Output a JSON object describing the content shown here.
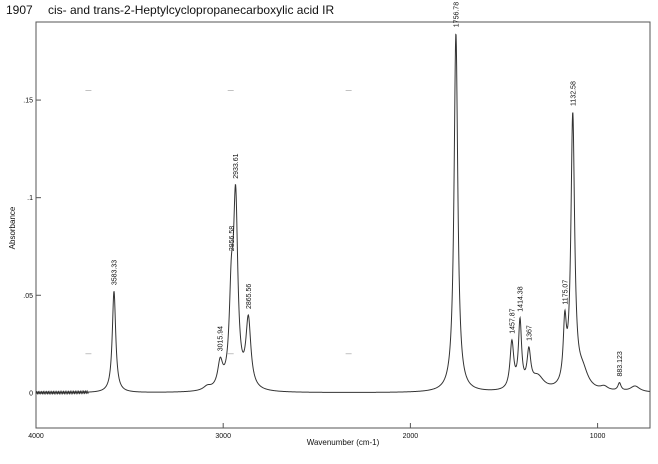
{
  "header": {
    "code": "1907",
    "title": "cis- and trans-2-Heptylcyclopropanecarboxylic acid IR"
  },
  "chart_data": {
    "type": "line",
    "xlabel": "Wavenumber (cm-1)",
    "ylabel": "Absorbance",
    "xlim": [
      4000,
      720
    ],
    "ylim": [
      -0.018,
      0.19
    ],
    "x_reversed": true,
    "grid": false,
    "x_ticks": [
      {
        "value": 4000,
        "label": "4000"
      },
      {
        "value": 3000,
        "label": "3000"
      },
      {
        "value": 2000,
        "label": "2000"
      },
      {
        "value": 1000,
        "label": "1000"
      }
    ],
    "y_ticks": [
      {
        "value": 0,
        "label": "0"
      },
      {
        "value": 0.05,
        "label": ".05"
      },
      {
        "value": 0.1,
        "label": ".1"
      },
      {
        "value": 0.15,
        "label": ".15"
      }
    ],
    "baseline_noise_x": [
      4000,
      3720
    ],
    "peaks": [
      {
        "label": "3583.33",
        "x": 3583.33,
        "y": 0.052,
        "width": 11
      },
      {
        "label": "3015.94",
        "x": 3015.94,
        "y": 0.013,
        "width": 16
      },
      {
        "label": "2956.58",
        "x": 2956.58,
        "y": 0.042,
        "width": 13
      },
      {
        "label": "2933.61",
        "x": 2933.61,
        "y": 0.094,
        "width": 14
      },
      {
        "label": "2865.56",
        "x": 2865.56,
        "y": 0.035,
        "width": 16
      },
      {
        "label": "1756.78",
        "x": 1756.78,
        "y": 0.184,
        "width": 12
      },
      {
        "label": "1457.87",
        "x": 1457.87,
        "y": 0.024,
        "width": 12
      },
      {
        "label": "1414.38",
        "x": 1414.38,
        "y": 0.034,
        "width": 10
      },
      {
        "label": "1367",
        "x": 1367,
        "y": 0.018,
        "width": 12
      },
      {
        "label": "1175.07",
        "x": 1175.07,
        "y": 0.03,
        "width": 10
      },
      {
        "label": "1132.58",
        "x": 1132.58,
        "y": 0.139,
        "width": 12
      },
      {
        "label": "883.123",
        "x": 883.123,
        "y": 0.004,
        "width": 10
      }
    ],
    "shoulders": [
      {
        "x": 3085,
        "y": 0.002,
        "width": 25
      },
      {
        "x": 1320,
        "y": 0.007,
        "width": 40
      },
      {
        "x": 1080,
        "y": 0.009,
        "width": 35
      },
      {
        "x": 965,
        "y": 0.002,
        "width": 25
      },
      {
        "x": 800,
        "y": 0.003,
        "width": 30
      }
    ]
  },
  "colors": {
    "frame": "#555555",
    "trace": "#333333",
    "text": "#111111"
  }
}
